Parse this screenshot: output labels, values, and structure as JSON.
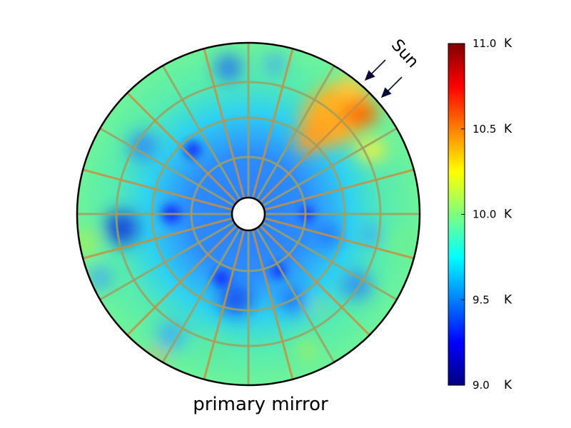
{
  "figure": {
    "caption": "primary mirror",
    "sun_label": "Sun"
  },
  "colorbar": {
    "min": 9.0,
    "max": 11.0,
    "colormap": "jet",
    "unit": "K",
    "ticks": [
      {
        "value": 11.0,
        "label": "11.0"
      },
      {
        "value": 10.5,
        "label": "10.5"
      },
      {
        "value": 10.0,
        "label": "10.0"
      },
      {
        "value": 9.5,
        "label": "9.5"
      },
      {
        "value": 9.0,
        "label": "9.0"
      }
    ]
  },
  "mirror": {
    "segment_rings": 4,
    "radial_spokes": 24,
    "hot_region": "upper-right, toward Sun",
    "cold_region": "inner rings",
    "colors": {
      "outline": "#000000",
      "baseline": "#5cf0a0",
      "hot": "#ff7a00",
      "cold": "#0a3cff"
    }
  }
}
